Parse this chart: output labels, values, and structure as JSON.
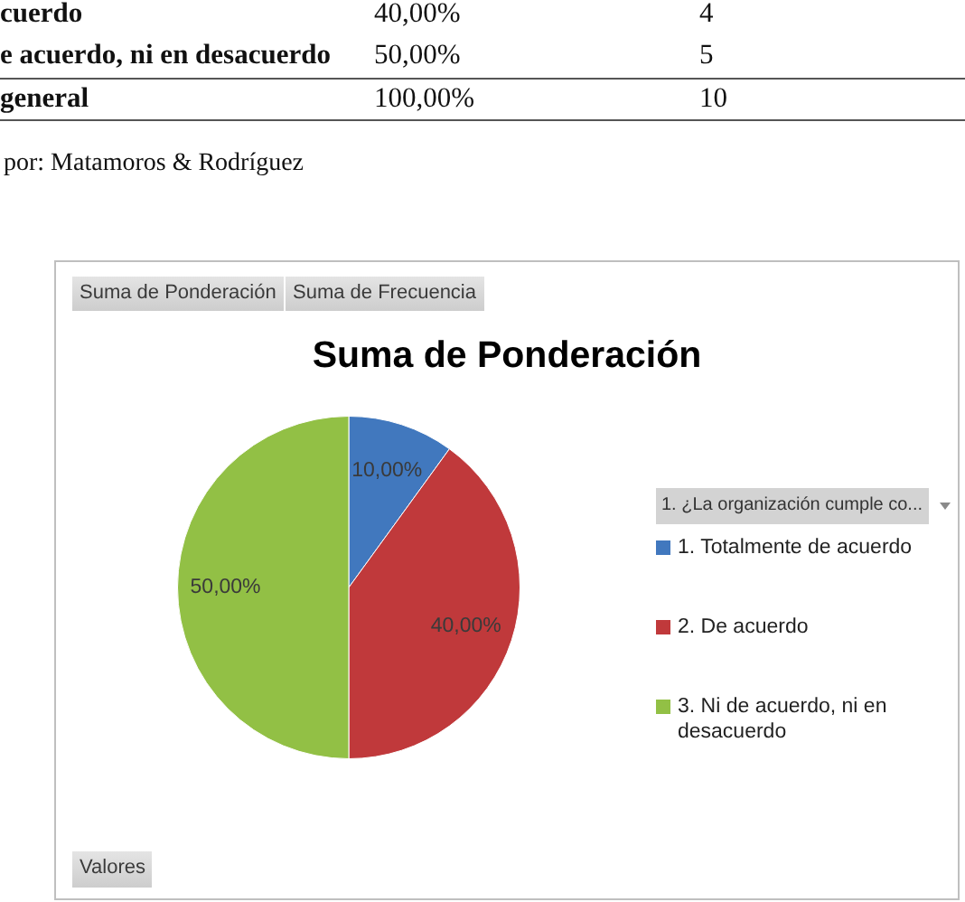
{
  "chart_data": {
    "type": "pie",
    "title": "Suma de Ponderación",
    "legend_title": "1. ¿La organización cumple co...",
    "categories": [
      "1. Totalmente de acuerdo",
      "2. De acuerdo",
      "3. Ni de acuerdo, ni en desacuerdo"
    ],
    "values": [
      10,
      40,
      50
    ],
    "colors": [
      "#4178be",
      "#c0393b",
      "#92c045"
    ],
    "value_labels": [
      "10,00%",
      "40,00%",
      "50,00%"
    ],
    "legend": "right",
    "annotations": [
      "cuerdo",
      "40,00%",
      "4",
      "e acuerdo, ni en desacuerdo",
      "50,00%",
      "5",
      "general",
      "100,00%",
      "10",
      "por: Matamoros & Rodríguez",
      "Suma de Ponderación",
      "Suma de Frecuencia",
      "Valores"
    ]
  }
}
